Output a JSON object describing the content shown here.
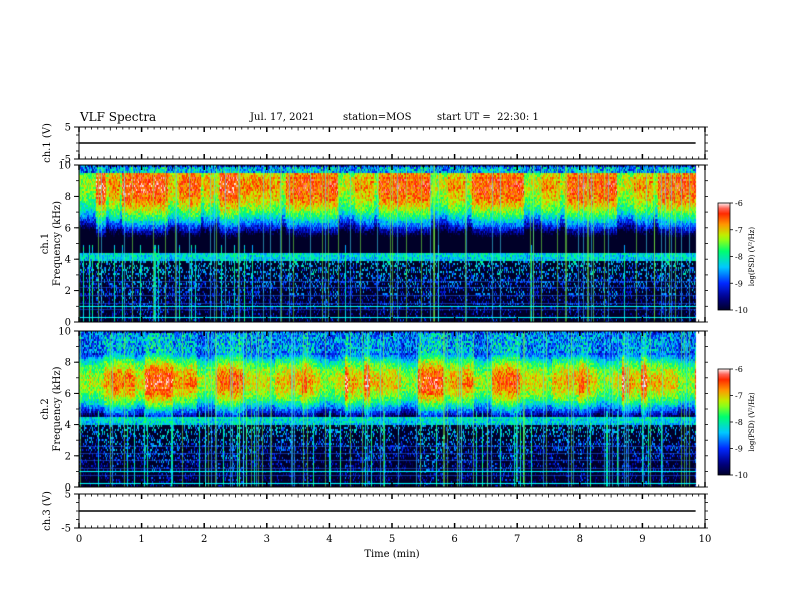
{
  "header": {
    "title": "VLF Spectra",
    "date": "Jul. 17, 2021",
    "station": "station=MOS",
    "start": "start UT =  22:30: 1"
  },
  "colorbar": {
    "label": "log(PSD) (V²/Hz)",
    "ticks": [
      "-6",
      "-7",
      "-8",
      "-9",
      "-10"
    ]
  },
  "colors": {
    "background": "#000020",
    "spectrum_scale": [
      "#000080",
      "#0000ff",
      "#00c0ff",
      "#00ff80",
      "#c0ff00",
      "#ff8000",
      "#ff0000",
      "#ffffff"
    ]
  },
  "chart_data": [
    {
      "type": "line",
      "panel": "ch1-waveform",
      "ylabel": "ch.1 (V)",
      "ylim": [
        -5,
        5
      ],
      "yticks": [
        "5",
        "-5"
      ],
      "series": [
        {
          "values_const": 0
        }
      ]
    },
    {
      "type": "heatmap",
      "panel": "ch1-spectrogram",
      "ylabel": "ch.1\nFrequency (kHz)",
      "ylim": [
        0,
        10
      ],
      "yticks": [
        "0",
        "2",
        "4",
        "6",
        "8",
        "10"
      ],
      "xlim": [
        0,
        10
      ],
      "zlim": [
        -10,
        -6
      ],
      "zlabel": "log(PSD)",
      "band_kHz": [
        5,
        9
      ],
      "peak_kHz": 8.7
    },
    {
      "type": "heatmap",
      "panel": "ch2-spectrogram",
      "ylabel": "ch.2\nFrequency (kHz)",
      "ylim": [
        0,
        10
      ],
      "yticks": [
        "0",
        "2",
        "4",
        "6",
        "8",
        "10"
      ],
      "xlim": [
        0,
        10
      ],
      "zlim": [
        -10,
        -6
      ],
      "zlabel": "log(PSD)",
      "band_kHz": [
        5,
        8
      ],
      "peak_kHz": 6.8
    },
    {
      "type": "line",
      "panel": "ch3-waveform",
      "ylabel": "ch.3 (V)",
      "ylim": [
        -5,
        5
      ],
      "yticks": [
        "5",
        "-5"
      ],
      "series": [
        {
          "values_const": 0
        }
      ]
    }
  ],
  "xaxis": {
    "label": "Time (min)",
    "ticks": [
      "0",
      "1",
      "2",
      "3",
      "4",
      "5",
      "6",
      "7",
      "8",
      "9",
      "10"
    ],
    "xlim": [
      0,
      10
    ]
  }
}
